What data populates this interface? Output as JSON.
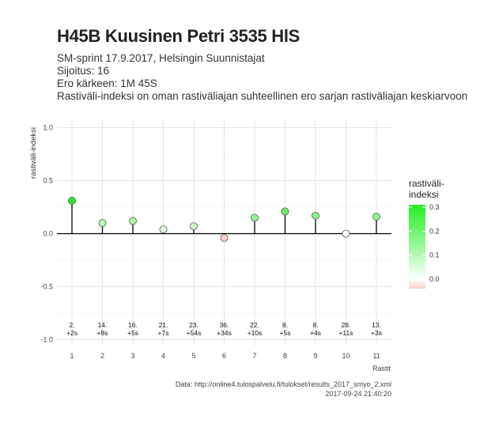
{
  "title": "H45B Kuusinen Petri 3535 HlS",
  "subtitle": [
    "SM-sprint 17.9.2017, Helsingin Suunnistajat",
    "Sijoitus: 16",
    "Ero kärkeen: 1M 45S",
    "Rastiväli-indeksi on oman rastiväliajan suhteellinen ero sarjan rastiväliajan keskiarvoon"
  ],
  "chart_data": {
    "type": "scatter",
    "style": "lollipop",
    "xlabel": "Rastit",
    "ylabel": "rastiväli-indeksi",
    "ylim": [
      -1.0,
      1.0
    ],
    "yticks": [
      1.0,
      0.5,
      0.0,
      -0.5,
      -1.0
    ],
    "ytick_labels": [
      "1.0",
      "0.5",
      "0.0",
      "-0.5",
      "-1.0"
    ],
    "x": [
      1,
      2,
      3,
      4,
      5,
      6,
      7,
      8,
      9,
      10,
      11
    ],
    "values": [
      0.31,
      0.1,
      0.12,
      0.04,
      0.07,
      -0.04,
      0.15,
      0.21,
      0.17,
      0.0,
      0.16
    ],
    "labels": [
      [
        "2.",
        "+2s"
      ],
      [
        "14.",
        "+8s"
      ],
      [
        "16.",
        "+5s"
      ],
      [
        "21.",
        "+7s"
      ],
      [
        "23.",
        "+54s"
      ],
      [
        "36.",
        "+34s"
      ],
      [
        "22.",
        "+10s"
      ],
      [
        "8.",
        "+5s"
      ],
      [
        "8.",
        "+4s"
      ],
      [
        "28.",
        "+11s"
      ],
      [
        "13.",
        "+3s"
      ]
    ],
    "grid": true,
    "legend": {
      "title": [
        "rastiväli-",
        "indeksi"
      ],
      "placement": "right",
      "ticks": [
        0.3,
        0.2,
        0.1,
        0.0
      ],
      "tick_labels": [
        "0.3",
        "0.2",
        "0.1",
        "0.0"
      ],
      "range": [
        -0.04,
        0.31
      ],
      "colors": {
        "high": "#22ee22",
        "zero": "#ffffff",
        "low": "#f6d3c8"
      }
    }
  },
  "caption": [
    "Data: http://online4.tulospalvelu.fi/tulokset/results_2017_smyo_2.xml",
    "2017-09-24 21:40:20"
  ]
}
